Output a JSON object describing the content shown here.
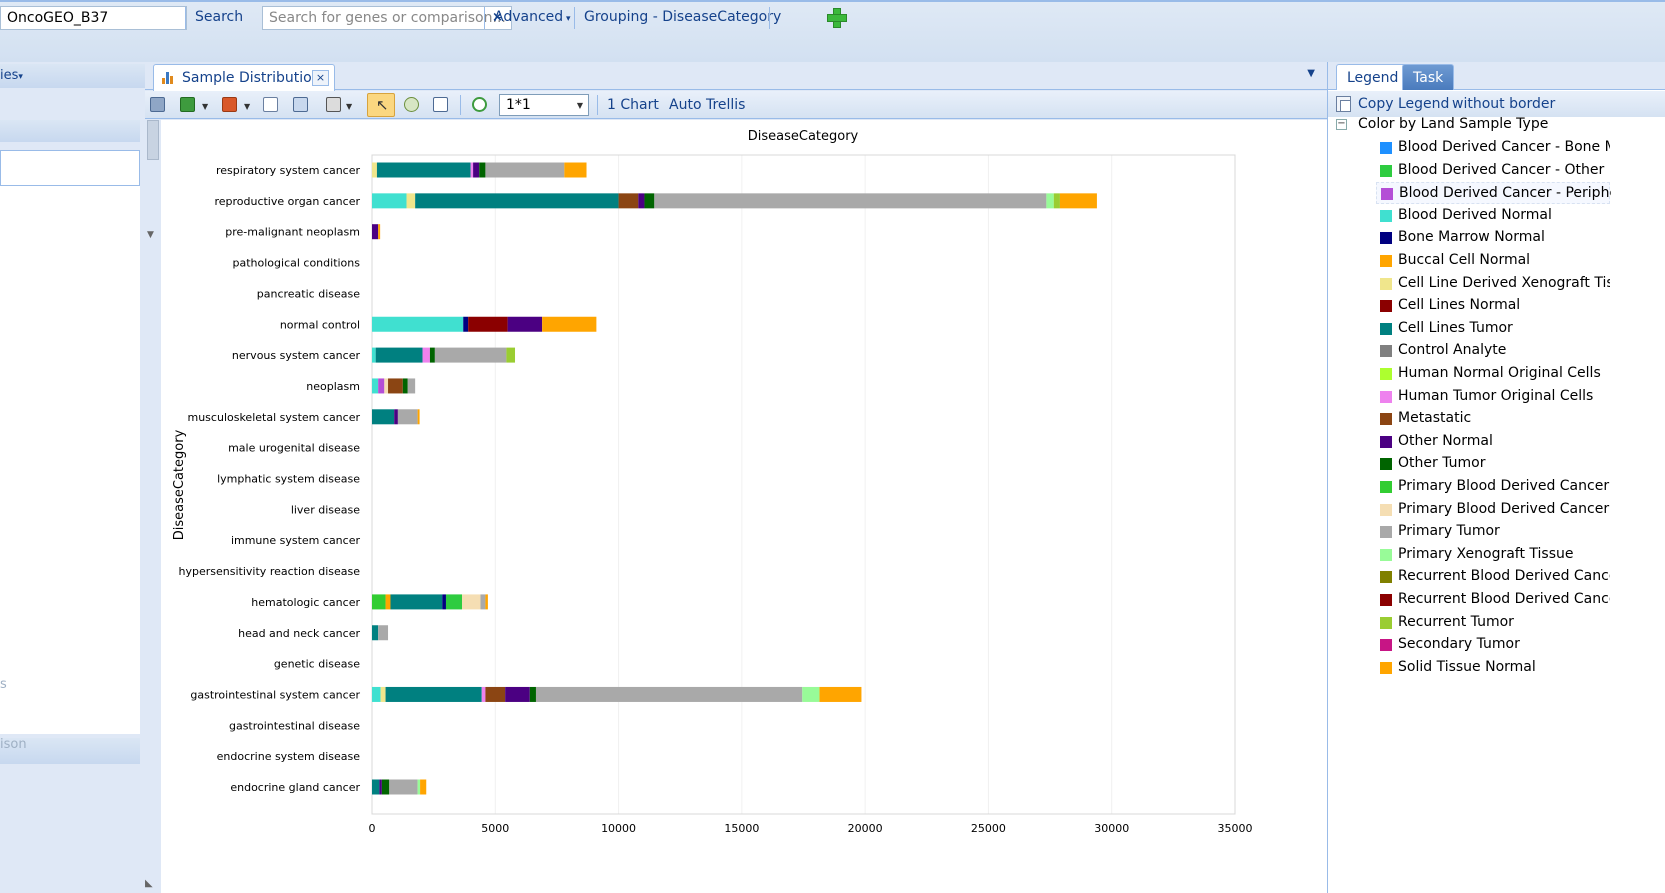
{
  "topbar": {
    "project": "OncoGEO_B37",
    "search_label": "Search",
    "search_placeholder": "Search for genes or comparison...",
    "search_clear": "×",
    "advanced_label": "Advanced",
    "grouping_label": "Grouping - DiseaseCategory"
  },
  "left_panel": {
    "header_label": "ies",
    "faded_1": "s",
    "faded_2": "ison"
  },
  "center": {
    "tab_label": "Sample Distribution",
    "tab_close": "×",
    "layout_value": "1*1",
    "chart_count_label": "1 Chart",
    "auto_trellis_label": "Auto Trellis"
  },
  "right_panel": {
    "tab_legend": "Legend",
    "tab_task": "Task",
    "copy_legend": "Copy Legend",
    "without_border": "without border",
    "legend_title": "Color by Land Sample Type",
    "collapse_symbol": "⊟",
    "items": [
      {
        "label": "Blood Derived Cancer - Bone M...",
        "color": "#1e90ff"
      },
      {
        "label": "Blood Derived Cancer - Other",
        "color": "#2ecc40"
      },
      {
        "label": "Blood Derived Cancer - Peripher...",
        "color": "#b44fd6"
      },
      {
        "label": "Blood Derived Normal",
        "color": "#40e0d0"
      },
      {
        "label": "Bone Marrow Normal",
        "color": "#000080"
      },
      {
        "label": "Buccal Cell Normal",
        "color": "#ffa500"
      },
      {
        "label": "Cell Line Derived Xenograft Tissue",
        "color": "#f0e68c"
      },
      {
        "label": "Cell Lines Normal",
        "color": "#8b0000"
      },
      {
        "label": "Cell Lines Tumor",
        "color": "#008080"
      },
      {
        "label": "Control Analyte",
        "color": "#808080"
      },
      {
        "label": "Human Normal Original Cells",
        "color": "#adff2f"
      },
      {
        "label": "Human Tumor Original Cells",
        "color": "#ee82ee"
      },
      {
        "label": "Metastatic",
        "color": "#8b4513"
      },
      {
        "label": "Other Normal",
        "color": "#4b0082"
      },
      {
        "label": "Other Tumor",
        "color": "#006400"
      },
      {
        "label": "Primary Blood Derived Cancer - ...",
        "color": "#32cd32"
      },
      {
        "label": "Primary Blood Derived Cancer - ...",
        "color": "#f5deb3"
      },
      {
        "label": "Primary Tumor",
        "color": "#a9a9a9"
      },
      {
        "label": "Primary Xenograft Tissue",
        "color": "#98fb98"
      },
      {
        "label": "Recurrent Blood Derived Cancer...",
        "color": "#808000"
      },
      {
        "label": "Recurrent Blood Derived Cancer...",
        "color": "#8b0000"
      },
      {
        "label": "Recurrent Tumor",
        "color": "#9acd32"
      },
      {
        "label": "Secondary Tumor",
        "color": "#c71585"
      },
      {
        "label": "Solid Tissue Normal",
        "color": "#ffa500"
      }
    ]
  },
  "chart_data": {
    "type": "bar",
    "orientation": "horizontal",
    "stacked": true,
    "title": "DiseaseCategory",
    "ylabel": "DiseaseCategory",
    "xlabel": "",
    "xlim": [
      0,
      35000
    ],
    "xticks": [
      0,
      5000,
      10000,
      15000,
      20000,
      25000,
      30000,
      35000
    ],
    "grid": true,
    "categories": [
      "respiratory system cancer",
      "reproductive organ cancer",
      "pre-malignant neoplasm",
      "pathological conditions",
      "pancreatic disease",
      "normal control",
      "nervous system cancer",
      "neoplasm",
      "musculoskeletal system cancer",
      "male urogenital disease",
      "lymphatic system disease",
      "liver disease",
      "immune system cancer",
      "hypersensitivity reaction disease",
      "hematologic cancer",
      "head and neck cancer",
      "genetic disease",
      "gastrointestinal system cancer",
      "gastrointestinal disease",
      "endocrine system disease",
      "endocrine gland cancer"
    ],
    "segments": [
      [
        {
          "v": 200,
          "c": "#f0e68c"
        },
        {
          "v": 3800,
          "c": "#008080"
        },
        {
          "v": 100,
          "c": "#ee82ee"
        },
        {
          "v": 250,
          "c": "#4b0082"
        },
        {
          "v": 250,
          "c": "#006400"
        },
        {
          "v": 3200,
          "c": "#a9a9a9"
        },
        {
          "v": 900,
          "c": "#ffa500"
        }
      ],
      [
        {
          "v": 1400,
          "c": "#40e0d0"
        },
        {
          "v": 350,
          "c": "#f0e68c"
        },
        {
          "v": 8250,
          "c": "#008080"
        },
        {
          "v": 800,
          "c": "#8b4513"
        },
        {
          "v": 250,
          "c": "#4b0082"
        },
        {
          "v": 400,
          "c": "#006400"
        },
        {
          "v": 15900,
          "c": "#a9a9a9"
        },
        {
          "v": 300,
          "c": "#98fb98"
        },
        {
          "v": 250,
          "c": "#9acd32"
        },
        {
          "v": 1500,
          "c": "#ffa500"
        }
      ],
      [
        {
          "v": 250,
          "c": "#4b0082"
        },
        {
          "v": 80,
          "c": "#ffa500"
        }
      ],
      [],
      [],
      [
        {
          "v": 3700,
          "c": "#40e0d0"
        },
        {
          "v": 200,
          "c": "#000080"
        },
        {
          "v": 1600,
          "c": "#8b0000"
        },
        {
          "v": 1400,
          "c": "#4b0082"
        },
        {
          "v": 2200,
          "c": "#ffa500"
        }
      ],
      [
        {
          "v": 150,
          "c": "#40e0d0"
        },
        {
          "v": 1900,
          "c": "#008080"
        },
        {
          "v": 300,
          "c": "#ee82ee"
        },
        {
          "v": 200,
          "c": "#006400"
        },
        {
          "v": 2900,
          "c": "#a9a9a9"
        },
        {
          "v": 350,
          "c": "#9acd32"
        }
      ],
      [
        {
          "v": 250,
          "c": "#40e0d0"
        },
        {
          "v": 250,
          "c": "#b44fd6"
        },
        {
          "v": 150,
          "c": "#f5deb3"
        },
        {
          "v": 600,
          "c": "#8b4513"
        },
        {
          "v": 200,
          "c": "#006400"
        },
        {
          "v": 300,
          "c": "#a9a9a9"
        }
      ],
      [
        {
          "v": 900,
          "c": "#008080"
        },
        {
          "v": 150,
          "c": "#4b0082"
        },
        {
          "v": 800,
          "c": "#a9a9a9"
        },
        {
          "v": 80,
          "c": "#ffa500"
        }
      ],
      [],
      [],
      [],
      [],
      [],
      [
        {
          "v": 550,
          "c": "#32cd32"
        },
        {
          "v": 200,
          "c": "#ffa500"
        },
        {
          "v": 2100,
          "c": "#008080"
        },
        {
          "v": 150,
          "c": "#000080"
        },
        {
          "v": 650,
          "c": "#2ecc40"
        },
        {
          "v": 750,
          "c": "#f5deb3"
        },
        {
          "v": 200,
          "c": "#a9a9a9"
        },
        {
          "v": 100,
          "c": "#ffa500"
        }
      ],
      [
        {
          "v": 250,
          "c": "#008080"
        },
        {
          "v": 400,
          "c": "#a9a9a9"
        }
      ],
      [],
      [
        {
          "v": 350,
          "c": "#40e0d0"
        },
        {
          "v": 200,
          "c": "#f0e68c"
        },
        {
          "v": 3900,
          "c": "#008080"
        },
        {
          "v": 150,
          "c": "#ee82ee"
        },
        {
          "v": 800,
          "c": "#8b4513"
        },
        {
          "v": 1000,
          "c": "#4b0082"
        },
        {
          "v": 250,
          "c": "#006400"
        },
        {
          "v": 10800,
          "c": "#a9a9a9"
        },
        {
          "v": 700,
          "c": "#98fb98"
        },
        {
          "v": 1700,
          "c": "#ffa500"
        }
      ],
      [],
      [],
      [
        {
          "v": 300,
          "c": "#008080"
        },
        {
          "v": 100,
          "c": "#4b0082"
        },
        {
          "v": 300,
          "c": "#006400"
        },
        {
          "v": 1150,
          "c": "#a9a9a9"
        },
        {
          "v": 100,
          "c": "#98fb98"
        },
        {
          "v": 250,
          "c": "#ffa500"
        }
      ]
    ]
  }
}
